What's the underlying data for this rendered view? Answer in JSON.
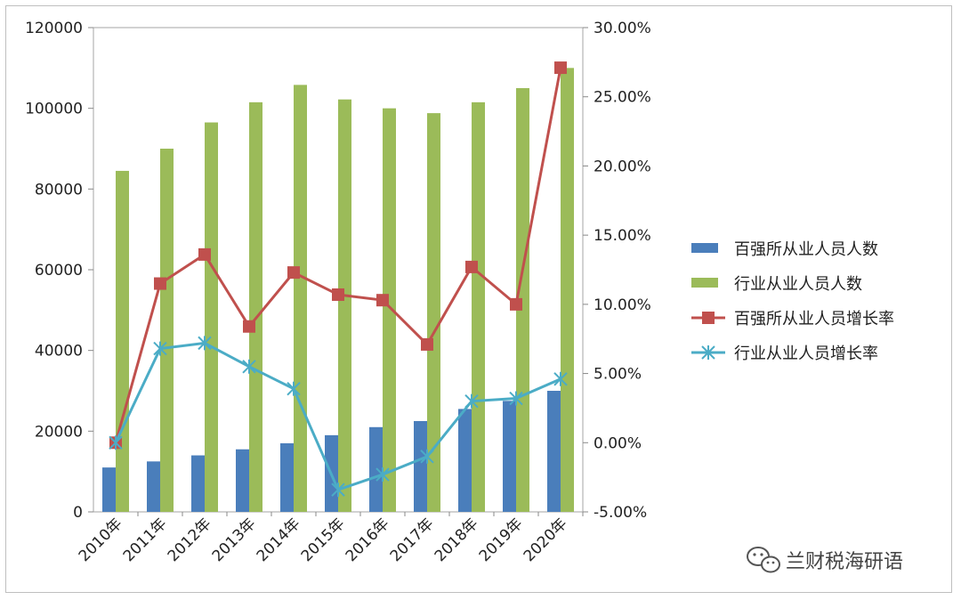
{
  "chart_data": {
    "type": "bar",
    "categories": [
      "2010年",
      "2011年",
      "2012年",
      "2013年",
      "2014年",
      "2015年",
      "2016年",
      "2017年",
      "2018年",
      "2019年",
      "2020年"
    ],
    "series": [
      {
        "name": "百强所从业人员人数",
        "kind": "bar",
        "axis": "left",
        "color": "#4a7ebb",
        "values": [
          11000,
          12500,
          14000,
          15500,
          17000,
          19000,
          21000,
          22500,
          25500,
          27500,
          30000
        ]
      },
      {
        "name": "行业从业人员人数",
        "kind": "bar",
        "axis": "left",
        "color": "#9bbb59",
        "values": [
          84500,
          90000,
          96500,
          101500,
          105800,
          102200,
          100000,
          98800,
          101500,
          105000,
          110000
        ]
      },
      {
        "name": "百强所从业人员增长率",
        "kind": "line",
        "axis": "right",
        "marker": "square",
        "color": "#c0504d",
        "values": [
          0.0,
          11.5,
          13.6,
          8.4,
          12.3,
          10.7,
          10.3,
          7.1,
          12.7,
          10.0,
          27.1
        ]
      },
      {
        "name": "行业从业人员增长率",
        "kind": "line",
        "axis": "right",
        "marker": "star",
        "color": "#4bacc6",
        "values": [
          0.0,
          6.8,
          7.2,
          5.5,
          3.9,
          -3.4,
          -2.3,
          -1.0,
          3.0,
          3.2,
          4.6
        ]
      }
    ],
    "left_axis": {
      "ylim": [
        0,
        120000
      ],
      "ticks": [
        "0",
        "20000",
        "40000",
        "60000",
        "80000",
        "100000",
        "120000"
      ]
    },
    "right_axis": {
      "ylim": [
        -5,
        30
      ],
      "ticks": [
        "-5.00%",
        "0.00%",
        "5.00%",
        "10.00%",
        "15.00%",
        "20.00%",
        "25.00%",
        "30.00%"
      ]
    },
    "grid": false,
    "legend_position": "right"
  },
  "watermark": {
    "text": "兰财税海研语",
    "icon": "wechat-icon"
  }
}
